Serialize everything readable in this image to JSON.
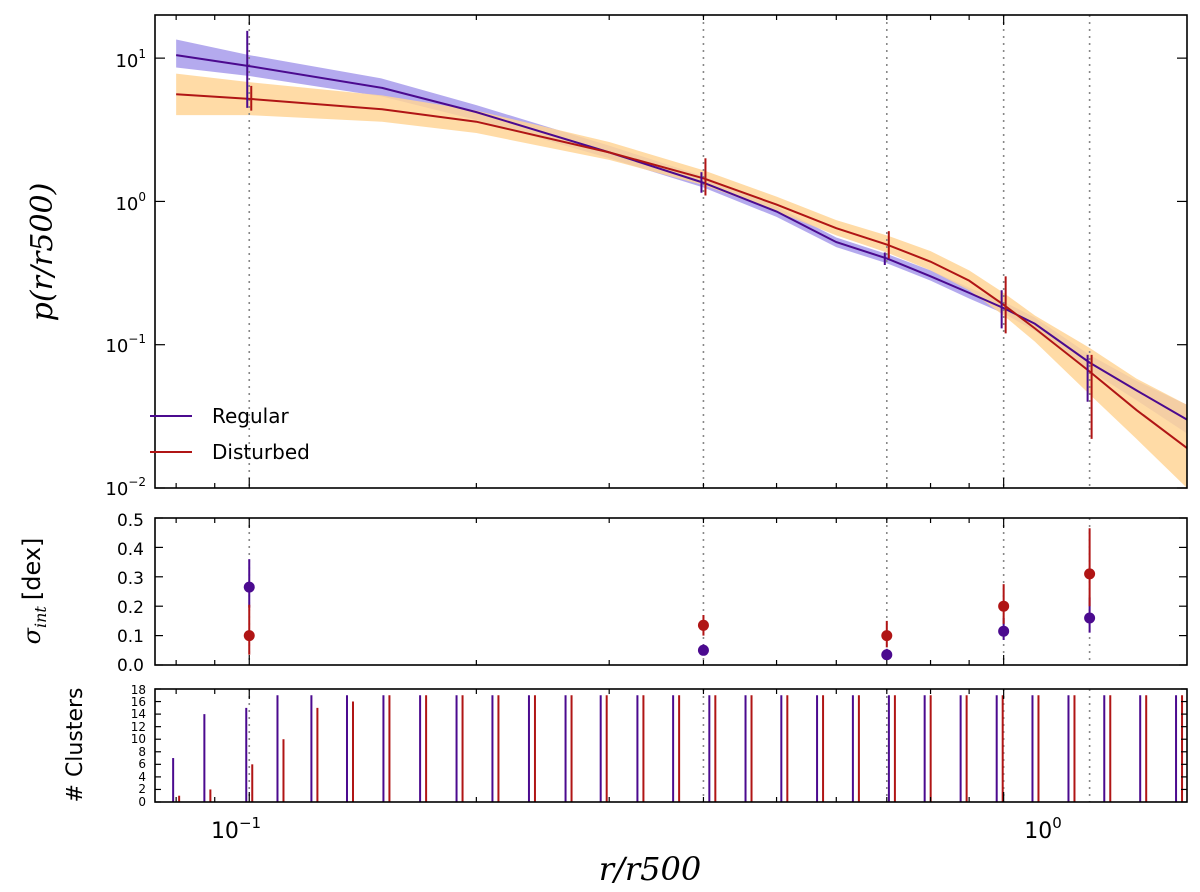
{
  "chart_data": [
    {
      "panel": "profile",
      "type": "line",
      "ylabel": "p(r/r500)",
      "yscale": "log",
      "xscale": "log",
      "xlim": [
        0.075,
        1.75
      ],
      "ylim": [
        0.01,
        20
      ],
      "yticks": [
        {
          "v": 10,
          "base": "10",
          "exp": "1"
        },
        {
          "v": 1,
          "base": "10",
          "exp": "0"
        },
        {
          "v": 0.1,
          "base": "10",
          "exp": "−1"
        },
        {
          "v": 0.01,
          "base": "10",
          "exp": "−2"
        }
      ],
      "legend": {
        "placement": "lower-left",
        "entries": [
          "Regular",
          "Disturbed"
        ]
      },
      "series": [
        {
          "name": "Regular",
          "color": "#4b0a8f",
          "band_color": "#9b8ee8",
          "curve": [
            [
              0.08,
              10.5
            ],
            [
              0.1,
              8.8
            ],
            [
              0.15,
              6.2
            ],
            [
              0.2,
              4.2
            ],
            [
              0.3,
              2.2
            ],
            [
              0.4,
              1.35
            ],
            [
              0.5,
              0.85
            ],
            [
              0.6,
              0.52
            ],
            [
              0.7,
              0.4
            ],
            [
              0.8,
              0.3
            ],
            [
              0.9,
              0.23
            ],
            [
              1.0,
              0.18
            ],
            [
              1.1,
              0.14
            ],
            [
              1.3,
              0.075
            ],
            [
              1.5,
              0.048
            ],
            [
              1.75,
              0.03
            ]
          ],
          "band": [
            [
              0.08,
              8.6,
              13.5
            ],
            [
              0.1,
              7.5,
              10.5
            ],
            [
              0.15,
              5.4,
              7.2
            ],
            [
              0.2,
              3.7,
              4.7
            ],
            [
              0.3,
              2.0,
              2.45
            ],
            [
              0.4,
              1.25,
              1.5
            ],
            [
              0.5,
              0.78,
              0.92
            ],
            [
              0.6,
              0.48,
              0.56
            ],
            [
              0.7,
              0.37,
              0.43
            ],
            [
              0.8,
              0.28,
              0.33
            ],
            [
              0.9,
              0.21,
              0.25
            ],
            [
              1.0,
              0.165,
              0.2
            ],
            [
              1.1,
              0.125,
              0.155
            ],
            [
              1.3,
              0.066,
              0.085
            ],
            [
              1.5,
              0.041,
              0.056
            ],
            [
              1.75,
              0.024,
              0.038
            ]
          ],
          "points": [
            {
              "x": 0.1,
              "y": 8.8,
              "lo": 4.5,
              "hi": 15.5
            },
            {
              "x": 0.4,
              "y": 1.35,
              "lo": 1.15,
              "hi": 1.6
            },
            {
              "x": 0.7,
              "y": 0.4,
              "lo": 0.36,
              "hi": 0.44
            },
            {
              "x": 1.0,
              "y": 0.18,
              "lo": 0.13,
              "hi": 0.24
            },
            {
              "x": 1.3,
              "y": 0.058,
              "lo": 0.04,
              "hi": 0.085
            }
          ]
        },
        {
          "name": "Disturbed",
          "color": "#b01515",
          "band_color": "#ffd596",
          "curve": [
            [
              0.08,
              5.6
            ],
            [
              0.1,
              5.2
            ],
            [
              0.15,
              4.4
            ],
            [
              0.2,
              3.6
            ],
            [
              0.3,
              2.2
            ],
            [
              0.4,
              1.45
            ],
            [
              0.5,
              0.95
            ],
            [
              0.6,
              0.65
            ],
            [
              0.7,
              0.5
            ],
            [
              0.8,
              0.38
            ],
            [
              0.9,
              0.28
            ],
            [
              1.0,
              0.19
            ],
            [
              1.1,
              0.13
            ],
            [
              1.3,
              0.065
            ],
            [
              1.5,
              0.035
            ],
            [
              1.75,
              0.019
            ]
          ],
          "band": [
            [
              0.08,
              4.0,
              7.8
            ],
            [
              0.1,
              4.0,
              6.8
            ],
            [
              0.15,
              3.6,
              5.5
            ],
            [
              0.2,
              3.0,
              4.3
            ],
            [
              0.3,
              1.95,
              2.6
            ],
            [
              0.4,
              1.3,
              1.65
            ],
            [
              0.5,
              0.85,
              1.08
            ],
            [
              0.6,
              0.58,
              0.74
            ],
            [
              0.7,
              0.44,
              0.58
            ],
            [
              0.8,
              0.33,
              0.45
            ],
            [
              0.9,
              0.24,
              0.33
            ],
            [
              1.0,
              0.16,
              0.23
            ],
            [
              1.1,
              0.105,
              0.16
            ],
            [
              1.3,
              0.045,
              0.095
            ],
            [
              1.5,
              0.022,
              0.058
            ],
            [
              1.75,
              0.01,
              0.038
            ]
          ],
          "points": [
            {
              "x": 0.1,
              "y": 5.2,
              "lo": 4.3,
              "hi": 6.4
            },
            {
              "x": 0.4,
              "y": 1.45,
              "lo": 1.1,
              "hi": 2.0
            },
            {
              "x": 0.7,
              "y": 0.5,
              "lo": 0.4,
              "hi": 0.62
            },
            {
              "x": 1.0,
              "y": 0.19,
              "lo": 0.12,
              "hi": 0.3
            },
            {
              "x": 1.3,
              "y": 0.045,
              "lo": 0.022,
              "hi": 0.085
            }
          ]
        }
      ]
    },
    {
      "panel": "scatter",
      "type": "scatter",
      "ylabel_sym": "σ",
      "ylabel_sub": "int",
      "ylabel_unit": "[dex]",
      "ylim": [
        0.0,
        0.5
      ],
      "yticks": [
        "0.0",
        "0.1",
        "0.2",
        "0.3",
        "0.4",
        "0.5"
      ],
      "series": [
        {
          "name": "Regular",
          "color": "#4b0a8f",
          "points": [
            {
              "x": 0.1,
              "y": 0.265,
              "lo": 0.195,
              "hi": 0.36
            },
            {
              "x": 0.4,
              "y": 0.05,
              "lo": 0.035,
              "hi": 0.07
            },
            {
              "x": 0.7,
              "y": 0.035,
              "lo": 0.02,
              "hi": 0.055
            },
            {
              "x": 1.0,
              "y": 0.115,
              "lo": 0.085,
              "hi": 0.16
            },
            {
              "x": 1.3,
              "y": 0.16,
              "lo": 0.11,
              "hi": 0.23
            }
          ]
        },
        {
          "name": "Disturbed",
          "color": "#b01515",
          "points": [
            {
              "x": 0.1,
              "y": 0.1,
              "lo": 0.035,
              "hi": 0.205
            },
            {
              "x": 0.4,
              "y": 0.135,
              "lo": 0.1,
              "hi": 0.17
            },
            {
              "x": 0.7,
              "y": 0.1,
              "lo": 0.06,
              "hi": 0.15
            },
            {
              "x": 1.0,
              "y": 0.2,
              "lo": 0.14,
              "hi": 0.275
            },
            {
              "x": 1.3,
              "y": 0.31,
              "lo": 0.2,
              "hi": 0.465
            }
          ]
        }
      ]
    },
    {
      "panel": "counts",
      "type": "bar",
      "ylabel": "# Clusters",
      "ylim": [
        0,
        18
      ],
      "yticks": [
        "0",
        "2",
        "4",
        "6",
        "8",
        "10",
        "12",
        "14",
        "16",
        "18"
      ],
      "x": [
        0.08,
        0.088,
        0.1,
        0.11,
        0.122,
        0.136,
        0.152,
        0.17,
        0.19,
        0.212,
        0.237,
        0.265,
        0.295,
        0.33,
        0.368,
        0.411,
        0.459,
        0.512,
        0.571,
        0.637,
        0.711,
        0.793,
        0.885,
        0.988,
        1.102,
        1.23,
        1.372,
        1.531,
        1.708
      ],
      "series": [
        {
          "name": "Regular",
          "color": "#4b0a8f",
          "values": [
            7,
            14,
            15,
            17,
            17,
            17,
            17,
            17,
            17,
            17,
            17,
            17,
            17,
            17,
            17,
            17,
            17,
            17,
            17,
            17,
            17,
            17,
            17,
            17,
            17,
            17,
            17,
            17,
            17
          ]
        },
        {
          "name": "Disturbed",
          "color": "#b01515",
          "values": [
            1,
            2,
            6,
            10,
            15,
            16,
            17,
            17,
            17,
            17,
            17,
            17,
            17,
            17,
            17,
            17,
            17,
            17,
            17,
            17,
            17,
            17,
            17,
            17,
            17,
            17,
            17,
            17,
            17
          ]
        }
      ]
    }
  ],
  "x_axis": {
    "label": "r/r500",
    "ticks": [
      {
        "v": 0.1,
        "base": "10",
        "exp": "−1"
      },
      {
        "v": 1.0,
        "base": "10",
        "exp": "0"
      }
    ],
    "reference_lines": [
      0.1,
      0.4,
      0.7,
      1.0,
      1.3
    ]
  }
}
